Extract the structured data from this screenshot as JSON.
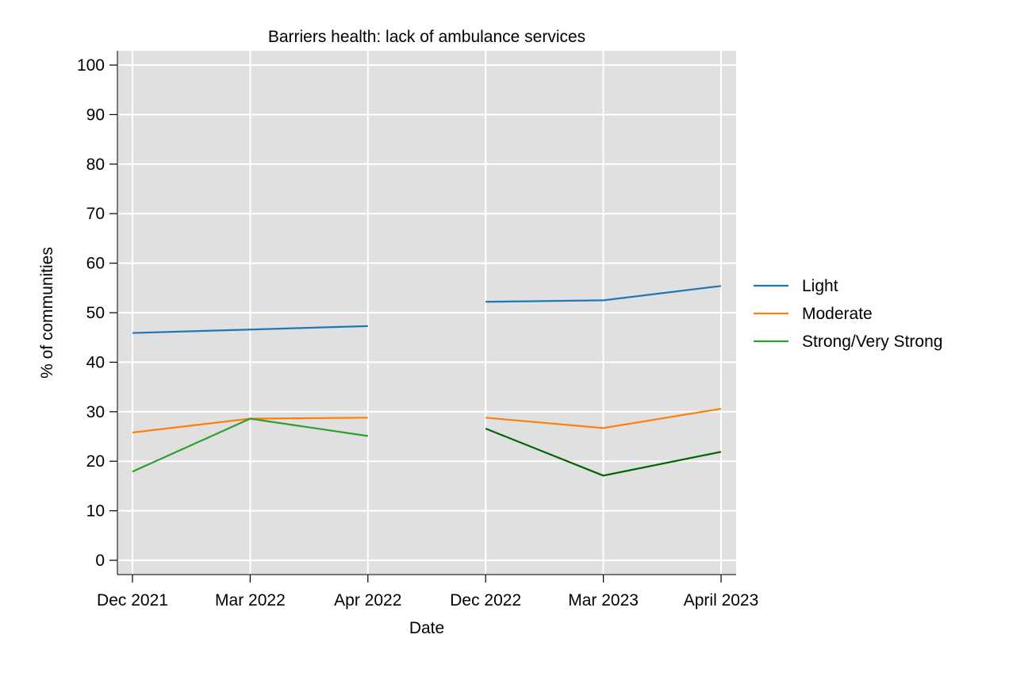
{
  "chart_data": {
    "type": "line",
    "title": "Barriers health: lack of ambulance services",
    "xlabel": "Date",
    "ylabel": "% of communities",
    "categories": [
      "Dec 2021",
      "Mar 2022",
      "Apr 2022",
      "Dec 2022",
      "Mar 2023",
      "April 2023"
    ],
    "ylim": [
      0,
      100
    ],
    "yticks": [
      0,
      10,
      20,
      30,
      40,
      50,
      60,
      70,
      80,
      90,
      100
    ],
    "grid": true,
    "legend_position": "right",
    "series": [
      {
        "name": "Light",
        "color": "#1f77b4",
        "segments": [
          {
            "color": "#1f77b4",
            "points": [
              [
                0,
                45.9
              ],
              [
                1,
                46.6
              ],
              [
                2,
                47.3
              ]
            ]
          },
          {
            "color": "#1f77b4",
            "points": [
              [
                3,
                52.2
              ],
              [
                4,
                52.5
              ],
              [
                5,
                55.4
              ]
            ]
          }
        ]
      },
      {
        "name": "Moderate",
        "color": "#ff7f0e",
        "segments": [
          {
            "color": "#ff7f0e",
            "points": [
              [
                0,
                25.8
              ],
              [
                1,
                28.6
              ],
              [
                2,
                28.8
              ]
            ]
          },
          {
            "color": "#ff7f0e",
            "points": [
              [
                3,
                28.8
              ],
              [
                4,
                26.7
              ],
              [
                5,
                30.6
              ]
            ]
          }
        ]
      },
      {
        "name": "Strong/Very Strong",
        "color": "#2ca02c",
        "segments": [
          {
            "color": "#2ca02c",
            "points": [
              [
                0,
                17.9
              ],
              [
                1,
                28.6
              ],
              [
                2,
                25.1
              ]
            ]
          },
          {
            "color": "#006400",
            "points": [
              [
                3,
                26.6
              ],
              [
                4,
                17.1
              ],
              [
                5,
                21.9
              ]
            ]
          }
        ]
      }
    ]
  }
}
